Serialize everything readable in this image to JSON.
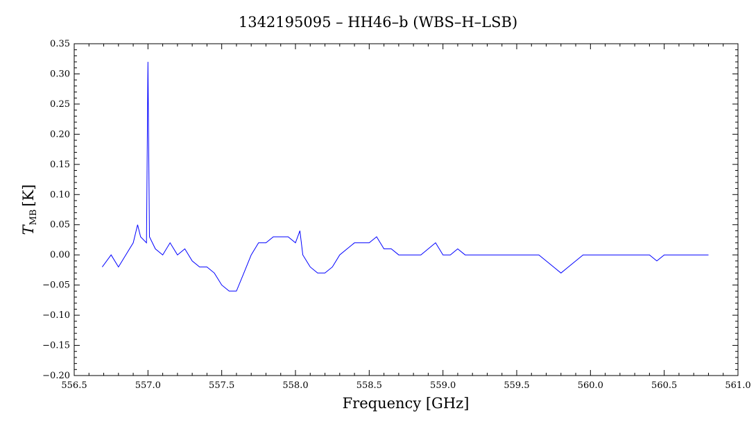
{
  "chart_data": {
    "type": "line",
    "title": "1342195095 – HH46–b (WBS–H–LSB)",
    "xlabel": "Frequency [GHz]",
    "ylabel": {
      "symbol": "T",
      "subscript": "MB",
      "unit": "[K]"
    },
    "xlim": [
      556.5,
      561.0
    ],
    "ylim": [
      -0.2,
      0.35
    ],
    "xticks": [
      "556.5",
      "557.0",
      "557.5",
      "558.0",
      "558.5",
      "559.0",
      "559.5",
      "560.0",
      "560.5",
      "561.0"
    ],
    "yticks": [
      "−0.20",
      "−0.15",
      "−0.10",
      "−0.05",
      "0.00",
      "0.05",
      "0.10",
      "0.15",
      "0.20",
      "0.25",
      "0.30",
      "0.35"
    ],
    "grid": false,
    "line_color": "#0000ff",
    "series": [
      {
        "x": [
          556.69,
          556.75,
          556.8,
          556.85,
          556.9,
          556.93,
          556.95,
          556.99,
          557.0,
          557.01,
          557.05,
          557.1,
          557.15,
          557.2,
          557.25,
          557.3,
          557.35,
          557.4,
          557.45,
          557.5,
          557.55,
          557.6,
          557.65,
          557.7,
          557.75,
          557.8,
          557.85,
          557.9,
          557.95,
          558.0,
          558.03,
          558.05,
          558.1,
          558.15,
          558.2,
          558.25,
          558.3,
          558.35,
          558.4,
          558.45,
          558.5,
          558.55,
          558.6,
          558.65,
          558.7,
          558.75,
          558.8,
          558.85,
          558.9,
          558.95,
          559.0,
          559.05,
          559.1,
          559.15,
          559.2,
          559.25,
          559.3,
          559.35,
          559.4,
          559.45,
          559.5,
          559.55,
          559.6,
          559.65,
          559.7,
          559.75,
          559.8,
          559.85,
          559.9,
          559.95,
          560.0,
          560.05,
          560.1,
          560.15,
          560.2,
          560.25,
          560.3,
          560.35,
          560.4,
          560.45,
          560.5,
          560.55,
          560.6,
          560.65,
          560.7,
          560.75,
          560.8
        ],
        "y": [
          -0.02,
          0.0,
          -0.02,
          0.0,
          0.02,
          0.05,
          0.03,
          0.02,
          0.32,
          0.03,
          0.01,
          0.0,
          0.02,
          0.0,
          0.01,
          -0.01,
          -0.02,
          -0.02,
          -0.03,
          -0.05,
          -0.06,
          -0.06,
          -0.03,
          0.0,
          0.02,
          0.02,
          0.03,
          0.03,
          0.03,
          0.02,
          0.04,
          0.0,
          -0.02,
          -0.03,
          -0.03,
          -0.02,
          0.0,
          0.01,
          0.02,
          0.02,
          0.02,
          0.03,
          0.01,
          0.01,
          0.0,
          0.0,
          0.0,
          0.0,
          0.01,
          0.02,
          0.0,
          0.0,
          0.01,
          0.0,
          0.0,
          0.0,
          0.0,
          0.0,
          0.0,
          0.0,
          0.0,
          0.0,
          0.0,
          0.0,
          -0.01,
          -0.02,
          -0.03,
          -0.02,
          -0.01,
          0.0,
          0.0,
          0.0,
          0.0,
          0.0,
          0.0,
          0.0,
          0.0,
          0.0,
          0.0,
          -0.01,
          0.0,
          0.0,
          0.0,
          0.0,
          0.0,
          0.0,
          0.0
        ]
      }
    ]
  }
}
